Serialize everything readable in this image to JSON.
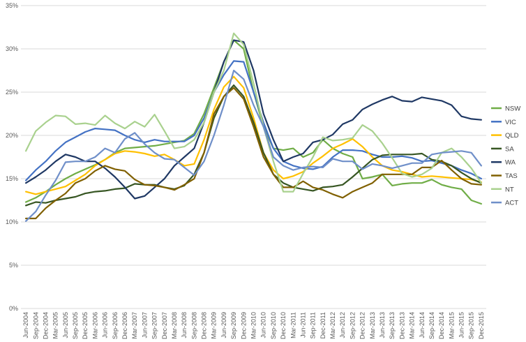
{
  "chart_data": {
    "type": "line",
    "title": "",
    "xlabel": "",
    "ylabel": "",
    "ylim": [
      0,
      35
    ],
    "yticks": [
      "0%",
      "5%",
      "10%",
      "15%",
      "20%",
      "25%",
      "30%",
      "35%"
    ],
    "ytick_values": [
      0,
      5,
      10,
      15,
      20,
      25,
      30,
      35
    ],
    "grid": "horizontal",
    "legend_position": "right",
    "x": [
      "Jun-2004",
      "Sep-2004",
      "Dec-2004",
      "Mar-2005",
      "Jun-2005",
      "Sep-2005",
      "Dec-2005",
      "Mar-2006",
      "Jun-2006",
      "Sep-2006",
      "Dec-2006",
      "Mar-2007",
      "Jun-2007",
      "Sep-2007",
      "Dec-2007",
      "Mar-2008",
      "Jun-2008",
      "Sep-2008",
      "Dec-2008",
      "Mar-2009",
      "Jun-2009",
      "Sep-2009",
      "Dec-2009",
      "Mar-2010",
      "Jun-2010",
      "Sep-2010",
      "Dec-2010",
      "Mar-2011",
      "Jun-2011",
      "Sep-2011",
      "Dec-2011",
      "Mar-2012",
      "Jun-2012",
      "Sep-2012",
      "Dec-2012",
      "Mar-2013",
      "Jun-2013",
      "Sep-2013",
      "Dec-2013",
      "Mar-2014",
      "Jun-2014",
      "Sep-2014",
      "Dec-2014",
      "Mar-2015",
      "Jun-2015",
      "Sep-2015",
      "Dec-2015"
    ],
    "series": [
      {
        "name": "NSW",
        "color": "#70ad47",
        "values": [
          12.3,
          12.8,
          13.5,
          14.3,
          15.0,
          15.6,
          16.1,
          16.6,
          17.2,
          18.0,
          18.5,
          18.6,
          18.7,
          18.8,
          19.0,
          19.2,
          19.4,
          20.2,
          22.5,
          25.5,
          28.5,
          31.0,
          30.0,
          25.0,
          21.0,
          18.5,
          18.3,
          18.5,
          17.5,
          18.0,
          19.5,
          18.5,
          17.9,
          17.5,
          15.0,
          15.2,
          15.5,
          14.2,
          14.4,
          14.5,
          14.5,
          14.9,
          14.3,
          14.0,
          13.8,
          12.5,
          12.1
        ]
      },
      {
        "name": "VIC",
        "color": "#4472c4",
        "values": [
          14.8,
          16.0,
          17.0,
          18.2,
          19.2,
          19.8,
          20.4,
          20.8,
          20.7,
          20.6,
          20.0,
          19.5,
          19.2,
          19.5,
          19.3,
          19.3,
          19.3,
          20.0,
          22.0,
          25.0,
          27.0,
          28.6,
          28.5,
          25.0,
          21.5,
          18.5,
          17.0,
          16.5,
          16.2,
          16.1,
          16.4,
          17.5,
          18.3,
          18.3,
          18.2,
          17.8,
          17.5,
          17.5,
          17.6,
          17.4,
          17.0,
          17.1,
          16.8,
          16.5,
          16.0,
          15.6,
          15.0
        ]
      },
      {
        "name": "QLD",
        "color": "#ffc000",
        "values": [
          13.5,
          13.2,
          13.5,
          13.8,
          14.1,
          14.8,
          15.5,
          16.5,
          17.2,
          17.9,
          18.2,
          18.1,
          17.9,
          17.6,
          17.8,
          17.2,
          16.5,
          16.7,
          19.5,
          23.0,
          25.6,
          26.8,
          25.5,
          22.0,
          18.0,
          16.0,
          15.0,
          15.3,
          15.8,
          16.8,
          17.6,
          18.5,
          19.0,
          19.6,
          18.7,
          17.5,
          16.5,
          16.0,
          15.8,
          15.5,
          15.2,
          15.3,
          15.2,
          15.1,
          15.0,
          14.9,
          14.6
        ]
      },
      {
        "name": "SA",
        "color": "#375623",
        "values": [
          11.9,
          12.3,
          12.2,
          12.5,
          12.7,
          12.9,
          13.3,
          13.5,
          13.6,
          13.8,
          13.9,
          14.4,
          14.3,
          14.3,
          14.0,
          13.8,
          14.2,
          15.5,
          18.0,
          22.0,
          24.5,
          25.8,
          24.5,
          21.5,
          18.0,
          15.5,
          14.5,
          14.0,
          13.8,
          13.6,
          14.0,
          14.1,
          14.3,
          15.2,
          16.2,
          17.2,
          17.7,
          17.8,
          17.8,
          17.8,
          17.9,
          17.2,
          17.0,
          16.5,
          15.7,
          15.0,
          14.5
        ]
      },
      {
        "name": "WA",
        "color": "#1f3864",
        "values": [
          14.5,
          15.2,
          16.0,
          17.0,
          17.8,
          17.5,
          17.0,
          17.0,
          16.2,
          15.2,
          14.0,
          12.7,
          13.0,
          14.0,
          15.0,
          16.5,
          17.5,
          18.5,
          21.5,
          25.0,
          28.5,
          31.0,
          30.8,
          27.5,
          22.5,
          19.5,
          17.0,
          17.5,
          17.9,
          19.2,
          19.5,
          20.1,
          21.3,
          21.8,
          23.0,
          23.6,
          24.1,
          24.5,
          24.0,
          23.9,
          24.4,
          24.2,
          24.0,
          23.5,
          22.2,
          21.9,
          21.8
        ]
      },
      {
        "name": "TAS",
        "color": "#806000",
        "values": [
          10.4,
          10.4,
          11.6,
          12.5,
          13.3,
          14.5,
          15.0,
          15.9,
          16.5,
          16.1,
          15.9,
          14.9,
          14.3,
          14.2,
          14.0,
          13.7,
          14.3,
          15.0,
          18.0,
          22.5,
          24.5,
          25.5,
          24.2,
          21.0,
          17.5,
          15.5,
          14.0,
          14.0,
          14.7,
          14.0,
          13.7,
          13.2,
          12.8,
          13.5,
          14.0,
          14.5,
          15.5,
          15.5,
          15.5,
          15.5,
          16.3,
          16.3,
          17.1,
          16.0,
          15.0,
          14.4,
          14.3
        ]
      },
      {
        "name": "NT",
        "color": "#a9d18e",
        "values": [
          18.2,
          20.5,
          21.5,
          22.3,
          22.2,
          21.3,
          21.4,
          21.2,
          22.3,
          21.4,
          20.8,
          21.6,
          21.0,
          22.4,
          20.5,
          18.5,
          18.7,
          19.5,
          21.5,
          25.0,
          27.5,
          31.8,
          30.5,
          26.0,
          21.0,
          17.0,
          13.5,
          13.5,
          15.6,
          17.5,
          19.8,
          19.4,
          19.5,
          19.7,
          21.2,
          20.5,
          19.1,
          17.4,
          15.6,
          15.2,
          15.5,
          16.2,
          18.0,
          18.5,
          17.5,
          16.2,
          14.5
        ]
      },
      {
        "name": "ACT",
        "color": "#6f8fc9",
        "values": [
          10.1,
          11.2,
          13.1,
          14.8,
          16.9,
          17.0,
          17.0,
          17.5,
          18.5,
          18.0,
          19.6,
          20.3,
          19.0,
          18.0,
          17.3,
          17.2,
          16.3,
          15.4,
          17.0,
          20.0,
          23.5,
          27.5,
          26.5,
          23.5,
          21.0,
          17.5,
          16.5,
          16.0,
          16.3,
          16.4,
          16.3,
          17.3,
          17.0,
          17.0,
          16.1,
          16.7,
          16.5,
          16.2,
          16.5,
          16.8,
          16.8,
          17.8,
          18.0,
          18.1,
          18.2,
          18.0,
          16.5
        ]
      }
    ]
  }
}
